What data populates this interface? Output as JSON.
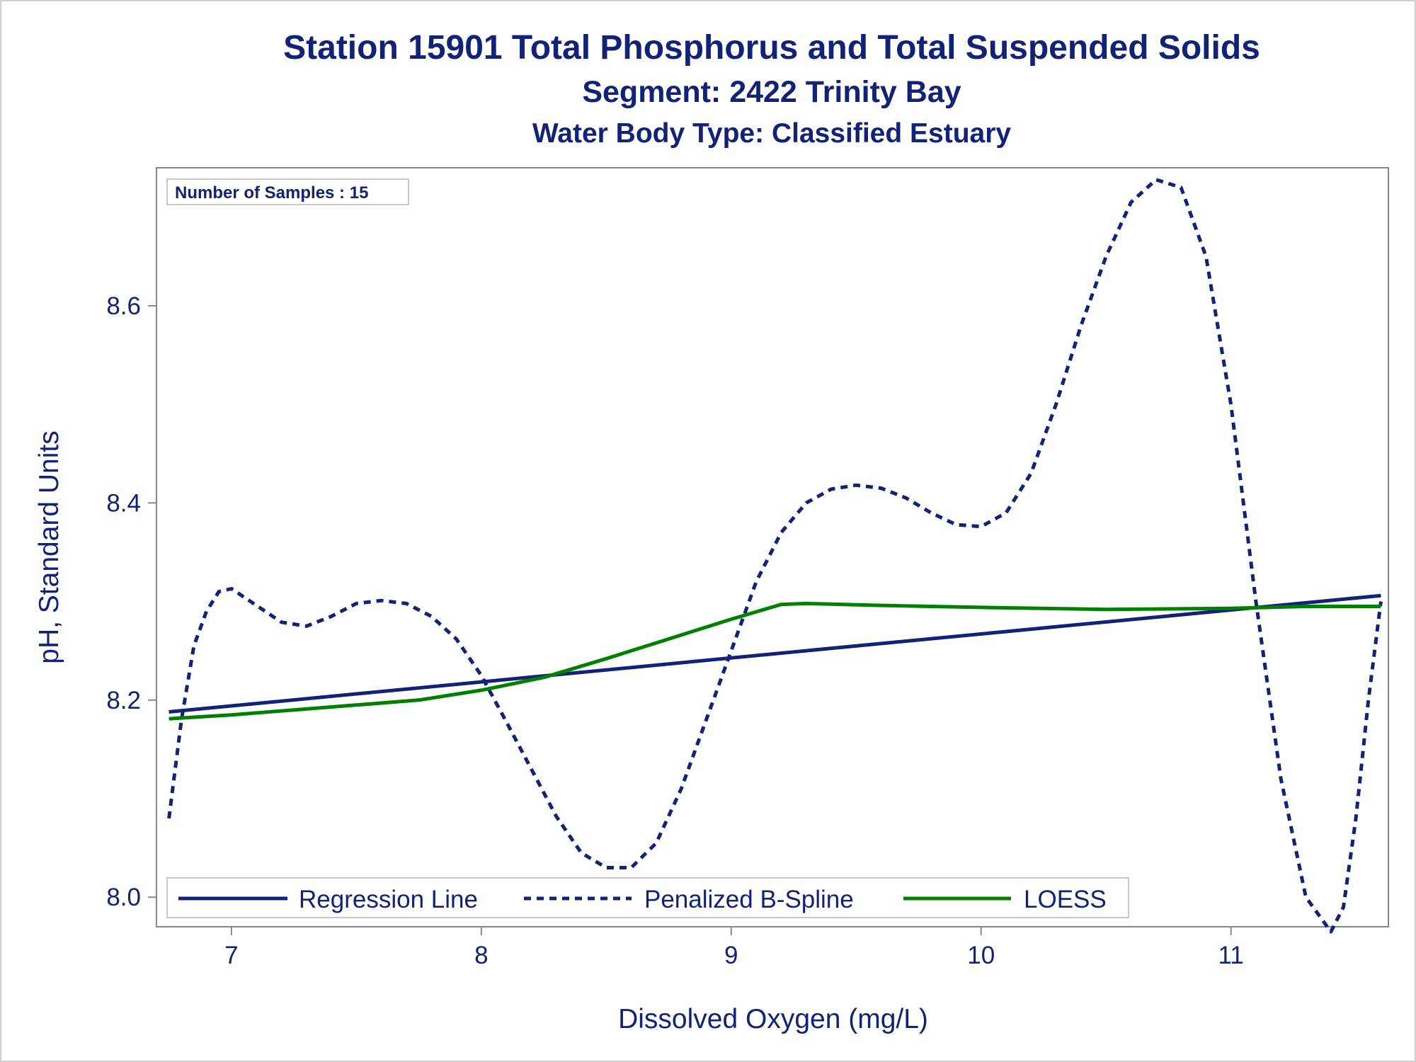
{
  "titles": {
    "line1": "Station 15901  Total Phosphorus and Total Suspended Solids",
    "line2": "Segment: 2422  Trinity Bay",
    "line3": "Water Body Type: Classified Estuary"
  },
  "inset_label": "Number of Samples : 15",
  "colors": {
    "text": "#112277",
    "regression": "#112277",
    "spline": "#112277",
    "loess": "#008000",
    "axis": "#888888"
  },
  "chart_data": {
    "type": "line",
    "xlabel": "Dissolved Oxygen (mg/L)",
    "ylabel": "pH, Standard Units",
    "xlim": [
      6.7,
      11.63
    ],
    "ylim": [
      7.97,
      8.74
    ],
    "xticks": [
      "7",
      "8",
      "9",
      "10",
      "11"
    ],
    "yticks": [
      "8.0",
      "8.2",
      "8.4",
      "8.6"
    ],
    "legend_position": "bottom-left inside",
    "series": [
      {
        "name": "Regression Line",
        "style": "solid",
        "x": [
          6.75,
          11.6
        ],
        "y": [
          8.188,
          8.306
        ]
      },
      {
        "name": "Penalized B-Spline",
        "style": "dashed",
        "x": [
          6.75,
          6.8,
          6.85,
          6.9,
          6.95,
          7.0,
          7.1,
          7.2,
          7.3,
          7.4,
          7.5,
          7.6,
          7.7,
          7.8,
          7.9,
          8.0,
          8.1,
          8.2,
          8.3,
          8.4,
          8.5,
          8.6,
          8.7,
          8.8,
          8.9,
          9.0,
          9.1,
          9.2,
          9.3,
          9.4,
          9.5,
          9.6,
          9.7,
          9.8,
          9.9,
          10.0,
          10.1,
          10.2,
          10.3,
          10.4,
          10.5,
          10.6,
          10.7,
          10.8,
          10.9,
          11.0,
          11.1,
          11.2,
          11.3,
          11.4,
          11.45,
          11.5,
          11.55,
          11.6
        ],
        "y": [
          8.08,
          8.18,
          8.255,
          8.29,
          8.31,
          8.313,
          8.296,
          8.279,
          8.275,
          8.285,
          8.298,
          8.301,
          8.298,
          8.285,
          8.262,
          8.225,
          8.178,
          8.13,
          8.082,
          8.045,
          8.03,
          8.03,
          8.055,
          8.11,
          8.18,
          8.25,
          8.32,
          8.37,
          8.4,
          8.414,
          8.418,
          8.415,
          8.405,
          8.39,
          8.378,
          8.376,
          8.39,
          8.43,
          8.5,
          8.58,
          8.65,
          8.705,
          8.728,
          8.72,
          8.65,
          8.5,
          8.3,
          8.12,
          8.0,
          7.965,
          7.99,
          8.08,
          8.2,
          8.3
        ]
      },
      {
        "name": "LOESS",
        "style": "solid",
        "x": [
          6.75,
          7.0,
          7.25,
          7.5,
          7.75,
          8.0,
          8.25,
          8.5,
          8.75,
          9.0,
          9.2,
          9.3,
          9.6,
          10.0,
          10.5,
          11.0,
          11.3,
          11.6
        ],
        "y": [
          8.181,
          8.185,
          8.19,
          8.195,
          8.2,
          8.21,
          8.223,
          8.242,
          8.262,
          8.282,
          8.297,
          8.298,
          8.296,
          8.294,
          8.292,
          8.293,
          8.295,
          8.295
        ]
      }
    ]
  }
}
